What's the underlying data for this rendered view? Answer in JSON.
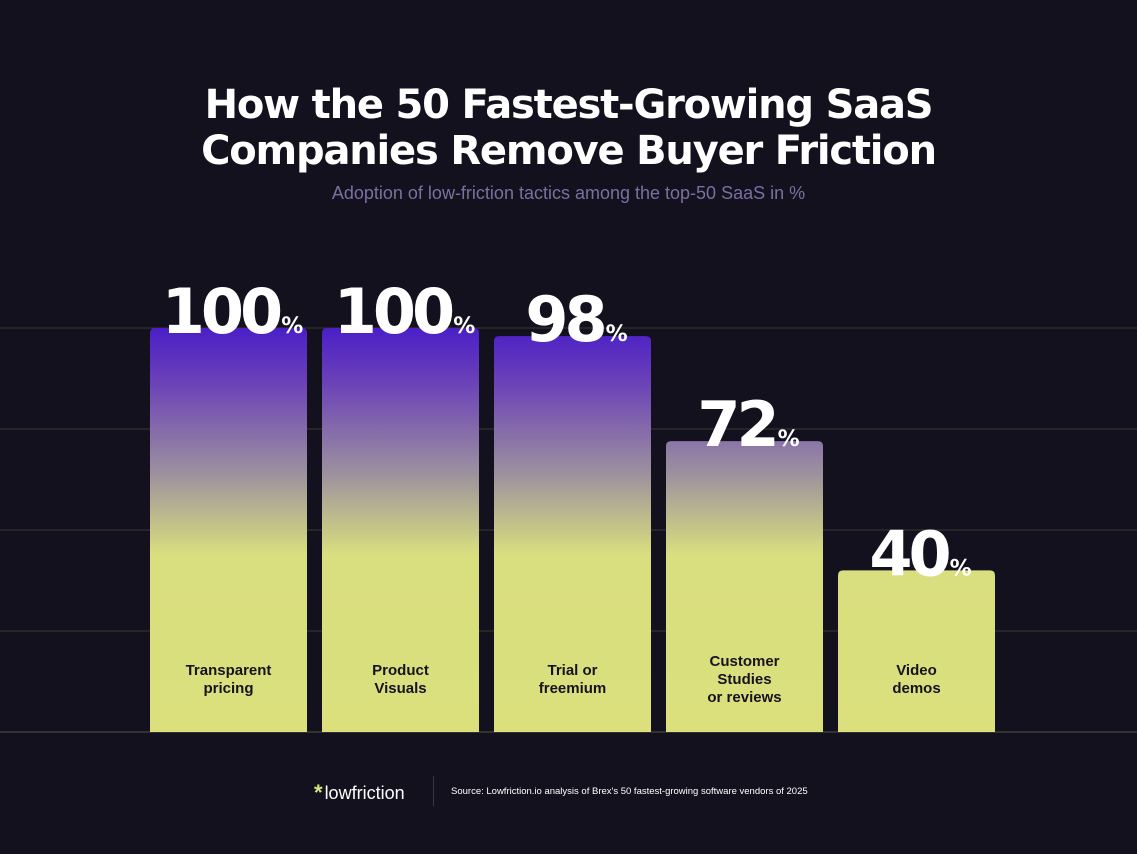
{
  "title_line1": "How the 50 Fastest-Growing SaaS",
  "title_line2": "Companies Remove Buyer Friction",
  "subtitle": "Adoption of low-friction tactics among the top-50 SaaS in %",
  "colors": {
    "background": "#14111f",
    "bar_top": "#4a1fc7",
    "bar_bottom": "#dbe07d",
    "grid": "#3d3a2c",
    "text": "#ffffff",
    "bar_label": "#16131f",
    "logo_accent": "#d8e67a"
  },
  "chart_data": {
    "type": "bar",
    "categories": [
      [
        "Transparent",
        "pricing"
      ],
      [
        "Product",
        "Visuals"
      ],
      [
        "Trial or",
        "freemium"
      ],
      [
        "Customer",
        "Studies",
        "or reviews"
      ],
      [
        "Video",
        "demos"
      ]
    ],
    "values": [
      100,
      100,
      98,
      72,
      40
    ],
    "value_suffix": "%",
    "ylim": [
      0,
      100
    ],
    "grid": true
  },
  "footer": {
    "logo_mark": "*",
    "logo_text": "lowfriction",
    "source": "Source: Lowfriction.io analysis of Brex's 50 fastest-growing software vendors of 2025"
  }
}
